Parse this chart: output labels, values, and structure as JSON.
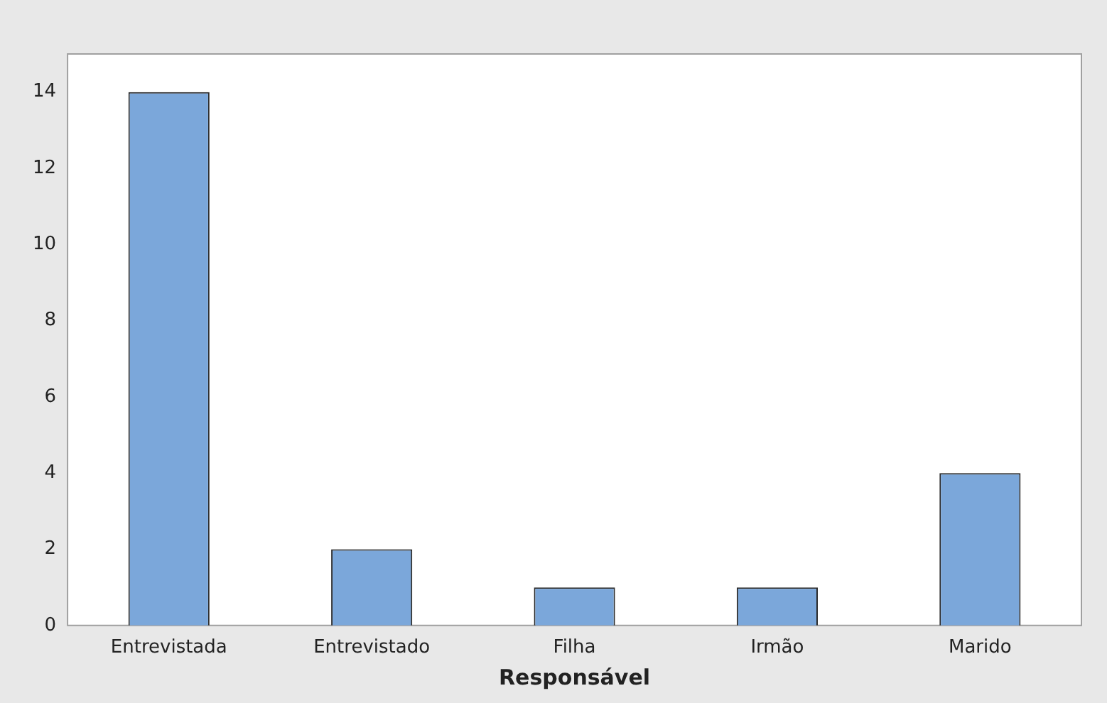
{
  "chart_data": {
    "type": "bar",
    "xlabel": "Responsável",
    "categories": [
      "Entrevistada",
      "Entrevistado",
      "Filha",
      "Irmão",
      "Marido"
    ],
    "values": [
      14,
      2,
      1,
      1,
      4
    ],
    "color": "#7ba7da",
    "ylim": [
      0,
      15
    ],
    "yticks": [
      0,
      2,
      4,
      6,
      8,
      10,
      12,
      14
    ],
    "grid": false
  }
}
